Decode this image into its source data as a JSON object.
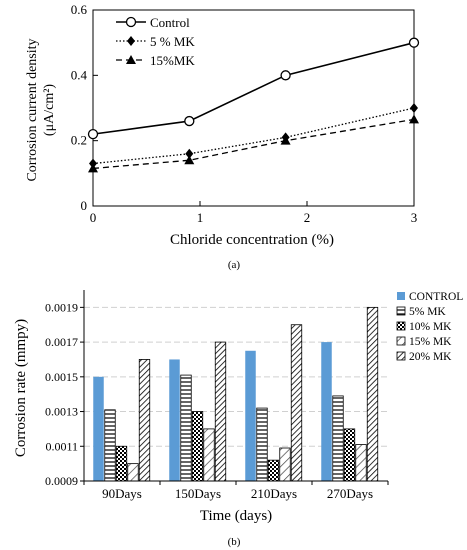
{
  "chart_data": [
    {
      "type": "line",
      "panel_label": "(a)",
      "title": "",
      "xlabel": "Chloride concentration (%)",
      "ylabel_line1": "Corrosion current density",
      "ylabel_line2": "(μA/cm²)",
      "xlim": [
        0,
        3
      ],
      "ylim": [
        0,
        0.6
      ],
      "xticks": [
        0,
        1,
        2,
        3
      ],
      "yticks": [
        0,
        0.2,
        0.4,
        0.6
      ],
      "grid": false,
      "legend_position": "top-left",
      "series": [
        {
          "name": "Control",
          "marker": "open-circle",
          "line": "solid",
          "x": [
            0,
            0.9,
            1.8,
            3
          ],
          "y": [
            0.22,
            0.26,
            0.4,
            0.5
          ]
        },
        {
          "name": "5 % MK",
          "marker": "filled-diamond",
          "line": "dotted",
          "x": [
            0,
            0.9,
            1.8,
            3
          ],
          "y": [
            0.13,
            0.16,
            0.21,
            0.3
          ]
        },
        {
          "name": "15%MK",
          "marker": "filled-triangle",
          "line": "dashed",
          "x": [
            0,
            0.9,
            1.8,
            3
          ],
          "y": [
            0.115,
            0.14,
            0.2,
            0.265
          ]
        }
      ]
    },
    {
      "type": "bar",
      "panel_label": "(b)",
      "title": "",
      "xlabel": "Time (days)",
      "ylabel": "Corrosion rate (mmpy)",
      "categories": [
        "90Days",
        "150Days",
        "210Days",
        "270Days"
      ],
      "ylim": [
        0.0009,
        0.002
      ],
      "yticks": [
        "0.0009",
        "0.0011",
        "0.0013",
        "0.0015",
        "0.0017",
        "0.0019"
      ],
      "grid": true,
      "legend_position": "right",
      "series": [
        {
          "name": "CONTROL",
          "pattern": "solid-blue",
          "values": [
            0.0015,
            0.0016,
            0.00165,
            0.0017
          ]
        },
        {
          "name": "5% MK",
          "pattern": "horizontal-lines",
          "values": [
            0.00131,
            0.00151,
            0.00132,
            0.00139
          ]
        },
        {
          "name": "10% MK",
          "pattern": "checker",
          "values": [
            0.0011,
            0.0013,
            0.00102,
            0.0012
          ]
        },
        {
          "name": "15% MK",
          "pattern": "diagonal-light",
          "values": [
            0.001,
            0.0012,
            0.00109,
            0.00111
          ]
        },
        {
          "name": "20% MK",
          "pattern": "diagonal-dense",
          "values": [
            0.0016,
            0.0017,
            0.0018,
            0.0019
          ]
        }
      ]
    }
  ],
  "colors": {
    "control_bar": "#5b9bd5",
    "ink": "#000000",
    "grid": "#d0d0d0"
  }
}
